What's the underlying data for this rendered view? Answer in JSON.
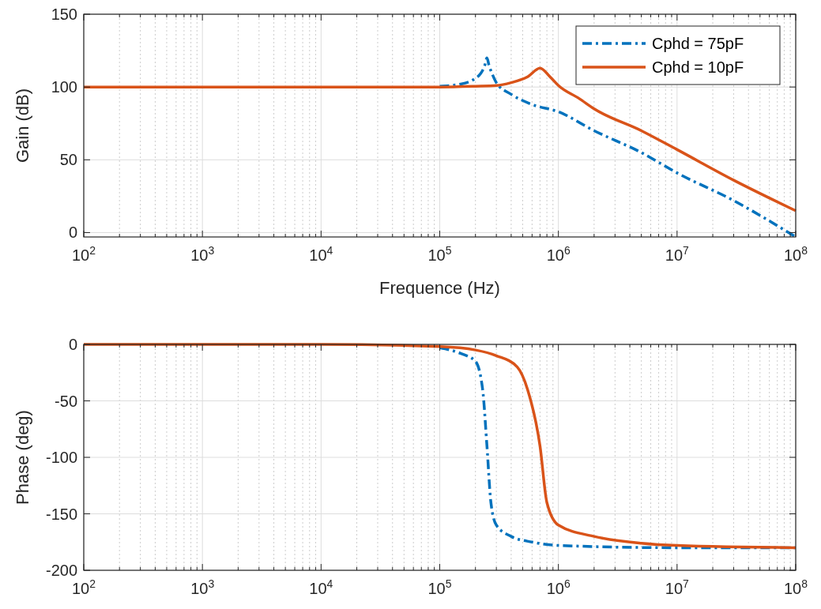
{
  "chart_data": [
    {
      "type": "line",
      "xlabel": "Frequence (Hz)",
      "ylabel": "Gain (dB)",
      "log": "x",
      "grid": true,
      "legend": "top right",
      "xlim": [
        100,
        100000000
      ],
      "ylim": [
        -3,
        150
      ],
      "xticks": [
        {
          "value": 100,
          "label": "10$^{2}$"
        },
        {
          "value": 1000,
          "label": "10$^{3}$"
        },
        {
          "value": 10000,
          "label": "10$^{4}$"
        },
        {
          "value": 100000,
          "label": "10$^{5}$"
        },
        {
          "value": 1000000,
          "label": "10$^{6}$"
        },
        {
          "value": 10000000,
          "label": "10$^{7}$"
        },
        {
          "value": 100000000,
          "label": "10$^{8}$"
        }
      ],
      "yticks": [
        0,
        50,
        100,
        150
      ],
      "series": [
        {
          "name": "Cphd = 75pF",
          "color": "#0072bd",
          "line_style": "dashed",
          "x": [
            100000,
            150000,
            200000,
            220000,
            240000,
            250000,
            260000,
            280000,
            300000,
            400000,
            600000,
            1000000,
            2000000,
            5000000,
            10000000,
            30000000,
            100000000
          ],
          "values": [
            100.5,
            102,
            106,
            109,
            115,
            120,
            115,
            108,
            103,
            95,
            88,
            83,
            70,
            55,
            41,
            22,
            -3
          ]
        },
        {
          "name": "Cphd = 10pF",
          "color": "#d95319",
          "line_style": "solid",
          "x": [
            100,
            1000,
            10000,
            100000,
            200000,
            300000,
            400000,
            550000,
            700000,
            850000,
            1000000,
            1500000,
            2000000,
            5000000,
            10000000,
            30000000,
            100000000
          ],
          "values": [
            100,
            100,
            100,
            100,
            100.5,
            101,
            103,
            107,
            113,
            107,
            101,
            92,
            85,
            70,
            57,
            36,
            15
          ]
        }
      ]
    },
    {
      "type": "line",
      "ylabel": "Phase (deg)",
      "log": "x",
      "grid": true,
      "xlim": [
        100,
        100000000
      ],
      "ylim": [
        -200,
        0
      ],
      "xticks": [
        {
          "value": 100,
          "label": "10$^{2}$"
        },
        {
          "value": 1000,
          "label": "10$^{3}$"
        },
        {
          "value": 10000,
          "label": "10$^{4}$"
        },
        {
          "value": 100000,
          "label": "10$^{5}$"
        },
        {
          "value": 1000000,
          "label": "10$^{6}$"
        },
        {
          "value": 10000000,
          "label": "10$^{7}$"
        },
        {
          "value": 100000000,
          "label": "10$^{8}$"
        }
      ],
      "yticks": [
        -200,
        -150,
        -100,
        -50,
        0
      ],
      "series": [
        {
          "color": "#0072bd",
          "line_style": "dashed",
          "x": [
            100000,
            150000,
            200000,
            230000,
            250000,
            270000,
            300000,
            400000,
            600000,
            1000000,
            10000000,
            100000000
          ],
          "values": [
            -3,
            -8,
            -15,
            -40,
            -90,
            -140,
            -160,
            -170,
            -175,
            -178,
            -180,
            -180
          ]
        },
        {
          "color": "#d95319",
          "line_style": "solid",
          "x": [
            100,
            1000,
            10000,
            100000,
            200000,
            300000,
            450000,
            550000,
            700000,
            800000,
            1000000,
            2000000,
            5000000,
            10000000,
            100000000
          ],
          "values": [
            0,
            0,
            0,
            -2,
            -5,
            -10,
            -20,
            -40,
            -90,
            -140,
            -160,
            -170,
            -176,
            -178,
            -180
          ]
        }
      ]
    }
  ]
}
